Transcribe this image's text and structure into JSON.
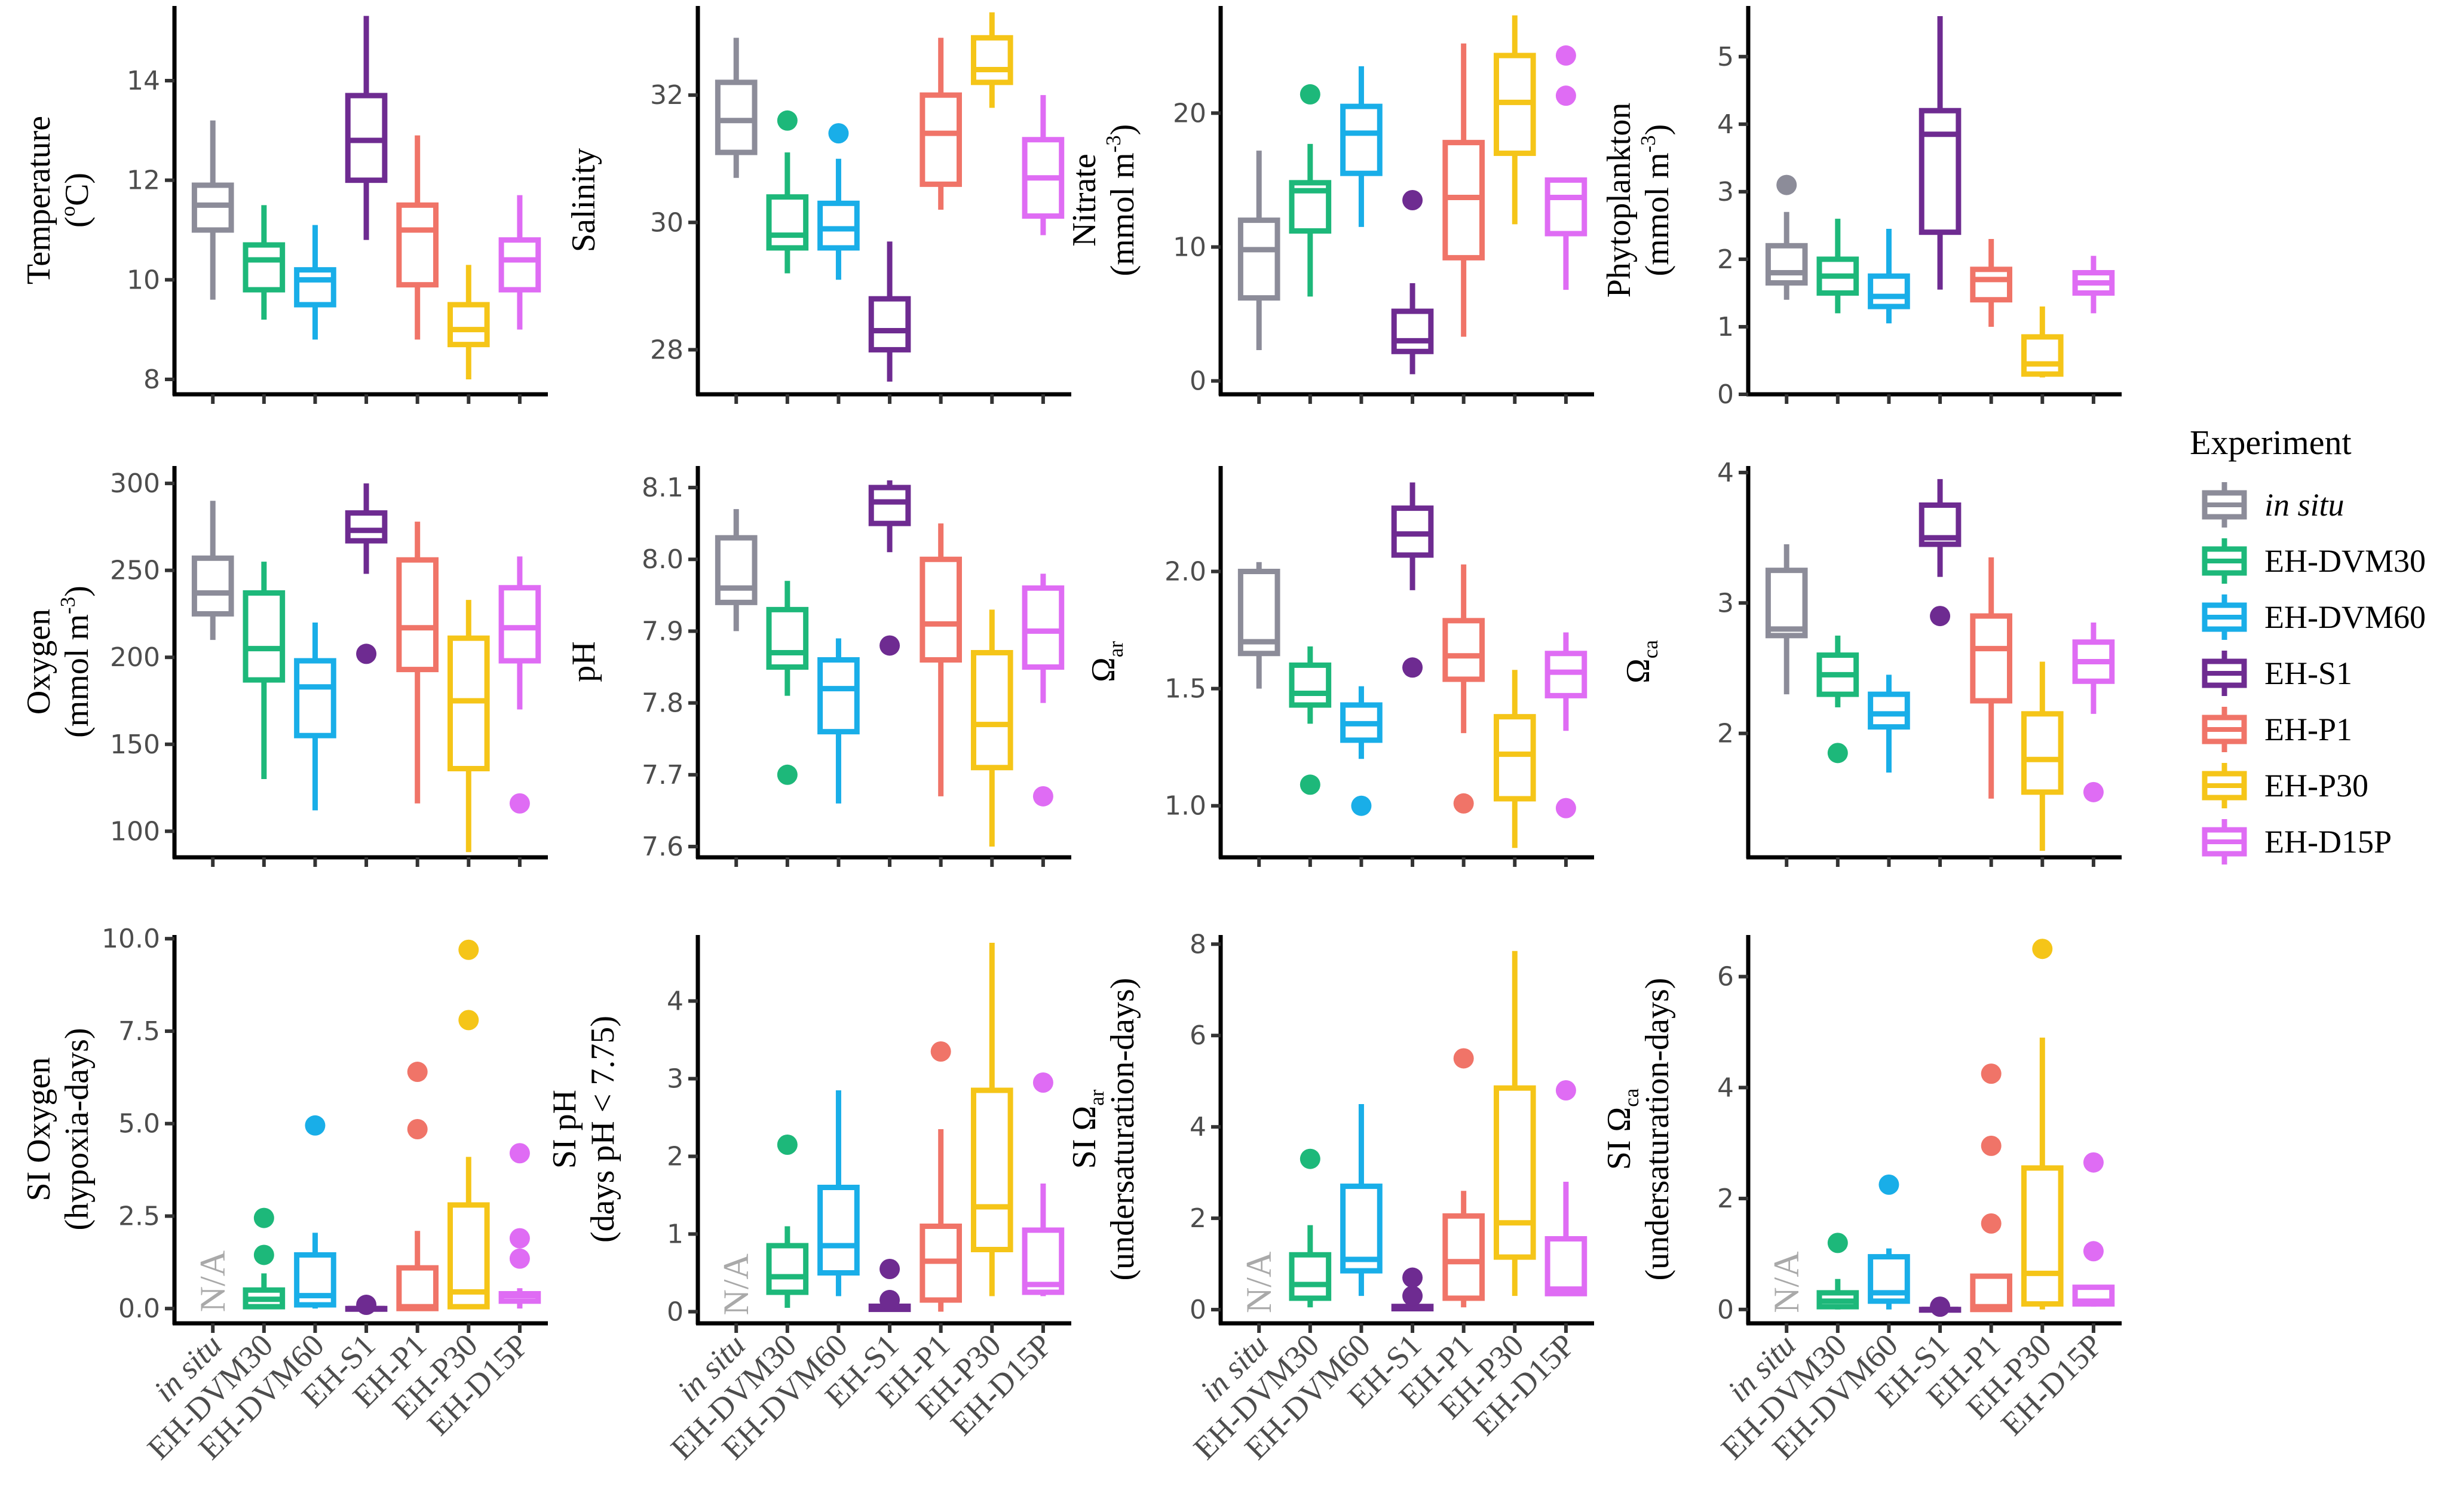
{
  "legend": {
    "title": "Experiment",
    "items": [
      {
        "label": "in situ",
        "color": "#8c8c99",
        "italic": true
      },
      {
        "label": "EH-DVM30",
        "color": "#1db87a",
        "italic": false
      },
      {
        "label": "EH-DVM60",
        "color": "#19aee8",
        "italic": false
      },
      {
        "label": "EH-S1",
        "color": "#6e2b91",
        "italic": false
      },
      {
        "label": "EH-P1",
        "color": "#f07468",
        "italic": false
      },
      {
        "label": "EH-P30",
        "color": "#f5c518",
        "italic": false
      },
      {
        "label": "EH-D15P",
        "color": "#df6cf4",
        "italic": false
      }
    ]
  },
  "x_categories": [
    "in situ",
    "EH-DVM30",
    "EH-DVM60",
    "EH-S1",
    "EH-P1",
    "EH-P30",
    "EH-D15P"
  ],
  "chart_data": [
    {
      "type": "boxplot",
      "ylabel": [
        "Temperature",
        "(oC)"
      ],
      "ylim": [
        7.7,
        15.5
      ],
      "yticks": [
        8,
        10,
        12,
        14
      ],
      "boxes": [
        {
          "min": 9.6,
          "q1": 11.0,
          "median": 11.5,
          "q3": 11.9,
          "max": 13.2,
          "outliers": []
        },
        {
          "min": 9.2,
          "q1": 9.8,
          "median": 10.4,
          "q3": 10.7,
          "max": 11.5,
          "outliers": []
        },
        {
          "min": 8.8,
          "q1": 9.5,
          "median": 10.0,
          "q3": 10.2,
          "max": 11.1,
          "outliers": []
        },
        {
          "min": 10.8,
          "q1": 12.0,
          "median": 12.8,
          "q3": 13.7,
          "max": 15.3,
          "outliers": []
        },
        {
          "min": 8.8,
          "q1": 9.9,
          "median": 11.0,
          "q3": 11.5,
          "max": 12.9,
          "outliers": []
        },
        {
          "min": 8.0,
          "q1": 8.7,
          "median": 9.0,
          "q3": 9.5,
          "max": 10.3,
          "outliers": []
        },
        {
          "min": 9.0,
          "q1": 9.8,
          "median": 10.4,
          "q3": 10.8,
          "max": 11.7,
          "outliers": []
        }
      ]
    },
    {
      "type": "boxplot",
      "ylabel": [
        "Salinity"
      ],
      "ylim": [
        27.3,
        33.4
      ],
      "yticks": [
        28,
        30,
        32
      ],
      "boxes": [
        {
          "min": 30.7,
          "q1": 31.1,
          "median": 31.6,
          "q3": 32.2,
          "max": 32.9,
          "outliers": []
        },
        {
          "min": 29.2,
          "q1": 29.6,
          "median": 29.8,
          "q3": 30.4,
          "max": 31.1,
          "outliers": [
            31.6
          ]
        },
        {
          "min": 29.1,
          "q1": 29.6,
          "median": 29.9,
          "q3": 30.3,
          "max": 31.0,
          "outliers": [
            31.4
          ]
        },
        {
          "min": 27.5,
          "q1": 28.0,
          "median": 28.3,
          "q3": 28.8,
          "max": 29.7,
          "outliers": []
        },
        {
          "min": 30.2,
          "q1": 30.6,
          "median": 31.4,
          "q3": 32.0,
          "max": 32.9,
          "outliers": []
        },
        {
          "min": 31.8,
          "q1": 32.2,
          "median": 32.4,
          "q3": 32.9,
          "max": 33.3,
          "outliers": []
        },
        {
          "min": 29.8,
          "q1": 30.1,
          "median": 30.7,
          "q3": 31.3,
          "max": 32.0,
          "outliers": []
        }
      ]
    },
    {
      "type": "boxplot",
      "ylabel": [
        "Nitrate",
        "(mmol m-3)"
      ],
      "ylim": [
        -1,
        28
      ],
      "yticks": [
        0,
        10,
        20
      ],
      "boxes": [
        {
          "min": 2.3,
          "q1": 6.2,
          "median": 9.8,
          "q3": 12.0,
          "max": 17.2,
          "outliers": []
        },
        {
          "min": 6.3,
          "q1": 11.2,
          "median": 14.2,
          "q3": 14.8,
          "max": 17.7,
          "outliers": [
            21.4
          ]
        },
        {
          "min": 11.5,
          "q1": 15.5,
          "median": 18.5,
          "q3": 20.5,
          "max": 23.5,
          "outliers": []
        },
        {
          "min": 0.5,
          "q1": 2.2,
          "median": 3.0,
          "q3": 5.2,
          "max": 7.3,
          "outliers": [
            13.5
          ]
        },
        {
          "min": 3.3,
          "q1": 9.2,
          "median": 13.7,
          "q3": 17.8,
          "max": 25.2,
          "outliers": []
        },
        {
          "min": 11.7,
          "q1": 17.0,
          "median": 20.8,
          "q3": 24.3,
          "max": 27.3,
          "outliers": []
        },
        {
          "min": 6.8,
          "q1": 11.0,
          "median": 13.7,
          "q3": 15.0,
          "max": 15.0,
          "outliers": [
            21.3,
            24.3
          ]
        }
      ]
    },
    {
      "type": "boxplot",
      "ylabel": [
        "Phytoplankton",
        "(mmol m-3)"
      ],
      "ylim": [
        0,
        5.75
      ],
      "yticks": [
        0,
        1,
        2,
        3,
        4,
        5
      ],
      "boxes": [
        {
          "min": 1.4,
          "q1": 1.65,
          "median": 1.8,
          "q3": 2.2,
          "max": 2.7,
          "outliers": [
            3.1
          ]
        },
        {
          "min": 1.2,
          "q1": 1.5,
          "median": 1.75,
          "q3": 2.0,
          "max": 2.6,
          "outliers": []
        },
        {
          "min": 1.05,
          "q1": 1.3,
          "median": 1.45,
          "q3": 1.75,
          "max": 2.45,
          "outliers": []
        },
        {
          "min": 1.55,
          "q1": 2.4,
          "median": 3.85,
          "q3": 4.2,
          "max": 5.6,
          "outliers": []
        },
        {
          "min": 1.0,
          "q1": 1.4,
          "median": 1.7,
          "q3": 1.85,
          "max": 2.3,
          "outliers": []
        },
        {
          "min": 0.25,
          "q1": 0.3,
          "median": 0.45,
          "q3": 0.85,
          "max": 1.3,
          "outliers": []
        },
        {
          "min": 1.2,
          "q1": 1.5,
          "median": 1.65,
          "q3": 1.8,
          "max": 2.05,
          "outliers": []
        }
      ]
    },
    {
      "type": "boxplot",
      "ylabel": [
        "Oxygen",
        "(mmol m-3)"
      ],
      "ylim": [
        85,
        310
      ],
      "yticks": [
        100,
        150,
        200,
        250,
        300
      ],
      "boxes": [
        {
          "min": 210,
          "q1": 225,
          "median": 237,
          "q3": 257,
          "max": 290,
          "outliers": []
        },
        {
          "min": 130,
          "q1": 187,
          "median": 205,
          "q3": 237,
          "max": 255,
          "outliers": []
        },
        {
          "min": 112,
          "q1": 155,
          "median": 183,
          "q3": 198,
          "max": 220,
          "outliers": []
        },
        {
          "min": 248,
          "q1": 267,
          "median": 273,
          "q3": 283,
          "max": 300,
          "outliers": [
            202
          ]
        },
        {
          "min": 116,
          "q1": 193,
          "median": 217,
          "q3": 256,
          "max": 278,
          "outliers": []
        },
        {
          "min": 88,
          "q1": 136,
          "median": 175,
          "q3": 211,
          "max": 233,
          "outliers": []
        },
        {
          "min": 170,
          "q1": 198,
          "median": 217,
          "q3": 240,
          "max": 258,
          "outliers": [
            116
          ]
        }
      ]
    },
    {
      "type": "boxplot",
      "ylabel": [
        "pH"
      ],
      "ylim": [
        7.585,
        8.13
      ],
      "yticks": [
        7.6,
        7.7,
        7.8,
        7.9,
        8.0,
        8.1
      ],
      "boxes": [
        {
          "min": 7.9,
          "q1": 7.94,
          "median": 7.96,
          "q3": 8.03,
          "max": 8.07,
          "outliers": []
        },
        {
          "min": 7.81,
          "q1": 7.85,
          "median": 7.87,
          "q3": 7.93,
          "max": 7.97,
          "outliers": [
            7.7
          ]
        },
        {
          "min": 7.66,
          "q1": 7.76,
          "median": 7.82,
          "q3": 7.86,
          "max": 7.89,
          "outliers": []
        },
        {
          "min": 8.01,
          "q1": 8.05,
          "median": 8.08,
          "q3": 8.1,
          "max": 8.11,
          "outliers": [
            7.88
          ]
        },
        {
          "min": 7.67,
          "q1": 7.86,
          "median": 7.91,
          "q3": 8.0,
          "max": 8.05,
          "outliers": []
        },
        {
          "min": 7.6,
          "q1": 7.71,
          "median": 7.77,
          "q3": 7.87,
          "max": 7.93,
          "outliers": []
        },
        {
          "min": 7.8,
          "q1": 7.85,
          "median": 7.9,
          "q3": 7.96,
          "max": 7.98,
          "outliers": [
            7.67
          ]
        }
      ]
    },
    {
      "type": "boxplot",
      "ylabel": [
        "Ωar"
      ],
      "ylim": [
        0.78,
        2.45
      ],
      "yticks": [
        1.0,
        1.5,
        2.0
      ],
      "boxes": [
        {
          "min": 1.5,
          "q1": 1.65,
          "median": 1.7,
          "q3": 2.0,
          "max": 2.04,
          "outliers": []
        },
        {
          "min": 1.35,
          "q1": 1.43,
          "median": 1.48,
          "q3": 1.6,
          "max": 1.68,
          "outliers": [
            1.09
          ]
        },
        {
          "min": 1.2,
          "q1": 1.28,
          "median": 1.35,
          "q3": 1.43,
          "max": 1.51,
          "outliers": [
            1.0
          ]
        },
        {
          "min": 1.92,
          "q1": 2.07,
          "median": 2.16,
          "q3": 2.27,
          "max": 2.38,
          "outliers": [
            1.59
          ]
        },
        {
          "min": 1.31,
          "q1": 1.54,
          "median": 1.64,
          "q3": 1.79,
          "max": 2.03,
          "outliers": [
            1.01
          ]
        },
        {
          "min": 0.82,
          "q1": 1.03,
          "median": 1.22,
          "q3": 1.38,
          "max": 1.58,
          "outliers": []
        },
        {
          "min": 1.32,
          "q1": 1.47,
          "median": 1.57,
          "q3": 1.65,
          "max": 1.74,
          "outliers": [
            0.99
          ]
        }
      ]
    },
    {
      "type": "boxplot",
      "ylabel": [
        "Ωca"
      ],
      "ylim": [
        1.05,
        4.05
      ],
      "yticks": [
        2,
        3,
        4
      ],
      "boxes": [
        {
          "min": 2.3,
          "q1": 2.75,
          "median": 2.8,
          "q3": 3.25,
          "max": 3.45,
          "outliers": []
        },
        {
          "min": 2.2,
          "q1": 2.3,
          "median": 2.45,
          "q3": 2.6,
          "max": 2.75,
          "outliers": [
            1.85
          ]
        },
        {
          "min": 1.7,
          "q1": 2.05,
          "median": 2.15,
          "q3": 2.3,
          "max": 2.45,
          "outliers": []
        },
        {
          "min": 3.2,
          "q1": 3.45,
          "median": 3.5,
          "q3": 3.75,
          "max": 3.95,
          "outliers": [
            2.9
          ]
        },
        {
          "min": 1.5,
          "q1": 2.25,
          "median": 2.65,
          "q3": 2.9,
          "max": 3.35,
          "outliers": []
        },
        {
          "min": 1.1,
          "q1": 1.55,
          "median": 1.8,
          "q3": 2.15,
          "max": 2.55,
          "outliers": []
        },
        {
          "min": 2.15,
          "q1": 2.4,
          "median": 2.55,
          "q3": 2.7,
          "max": 2.85,
          "outliers": [
            1.55
          ]
        }
      ]
    },
    {
      "type": "boxplot",
      "ylabel": [
        "SI Oxygen",
        "(hypoxia-days)"
      ],
      "ylim": [
        -0.4,
        10.1
      ],
      "yticks": [
        0.0,
        2.5,
        5.0,
        7.5,
        10.0
      ],
      "na_label": "N/A",
      "boxes": [
        null,
        {
          "min": 0.0,
          "q1": 0.05,
          "median": 0.25,
          "q3": 0.5,
          "max": 0.95,
          "outliers": [
            1.45,
            2.45
          ]
        },
        {
          "min": 0.0,
          "q1": 0.1,
          "median": 0.35,
          "q3": 1.45,
          "max": 2.05,
          "outliers": [
            4.95
          ]
        },
        {
          "min": 0.0,
          "q1": 0.0,
          "median": 0.0,
          "q3": 0.0,
          "max": 0.0,
          "outliers": [
            0.1
          ]
        },
        {
          "min": 0.0,
          "q1": 0.0,
          "median": 0.05,
          "q3": 1.1,
          "max": 2.1,
          "outliers": [
            4.85,
            6.4
          ]
        },
        {
          "min": 0.0,
          "q1": 0.05,
          "median": 0.45,
          "q3": 2.8,
          "max": 4.1,
          "outliers": [
            7.8,
            9.7
          ]
        },
        {
          "min": 0.0,
          "q1": 0.2,
          "median": 0.35,
          "q3": 0.4,
          "max": 0.55,
          "outliers": [
            1.35,
            1.9,
            4.2
          ]
        }
      ]
    },
    {
      "type": "boxplot",
      "ylabel": [
        "SI pH",
        "(days pH < 7.75)"
      ],
      "ylim": [
        -0.15,
        4.85
      ],
      "yticks": [
        0,
        1,
        2,
        3,
        4
      ],
      "na_label": "N/A",
      "boxes": [
        null,
        {
          "min": 0.05,
          "q1": 0.25,
          "median": 0.45,
          "q3": 0.85,
          "max": 1.1,
          "outliers": [
            2.15
          ]
        },
        {
          "min": 0.2,
          "q1": 0.5,
          "median": 0.85,
          "q3": 1.6,
          "max": 2.85,
          "outliers": []
        },
        {
          "min": 0.0,
          "q1": 0.03,
          "median": 0.05,
          "q3": 0.07,
          "max": 0.1,
          "outliers": [
            0.15,
            0.55
          ]
        },
        {
          "min": 0.0,
          "q1": 0.15,
          "median": 0.65,
          "q3": 1.1,
          "max": 2.35,
          "outliers": [
            3.35
          ]
        },
        {
          "min": 0.2,
          "q1": 0.8,
          "median": 1.35,
          "q3": 2.85,
          "max": 4.75,
          "outliers": []
        },
        {
          "min": 0.2,
          "q1": 0.25,
          "median": 0.35,
          "q3": 1.05,
          "max": 1.65,
          "outliers": [
            2.95
          ]
        }
      ]
    },
    {
      "type": "boxplot",
      "ylabel": [
        "SI Ωar",
        "(undersaturation-days)"
      ],
      "ylim": [
        -0.3,
        8.2
      ],
      "yticks": [
        0,
        2,
        4,
        6,
        8
      ],
      "na_label": "N/A",
      "boxes": [
        null,
        {
          "min": 0.05,
          "q1": 0.25,
          "median": 0.55,
          "q3": 1.2,
          "max": 1.85,
          "outliers": [
            3.3
          ]
        },
        {
          "min": 0.3,
          "q1": 0.85,
          "median": 1.1,
          "q3": 2.7,
          "max": 4.5,
          "outliers": []
        },
        {
          "min": 0.0,
          "q1": 0.02,
          "median": 0.05,
          "q3": 0.07,
          "max": 0.1,
          "outliers": [
            0.3,
            0.7
          ]
        },
        {
          "min": 0.05,
          "q1": 0.25,
          "median": 1.05,
          "q3": 2.05,
          "max": 2.6,
          "outliers": [
            5.5
          ]
        },
        {
          "min": 0.3,
          "q1": 1.15,
          "median": 1.9,
          "q3": 4.85,
          "max": 7.85,
          "outliers": []
        },
        {
          "min": 0.3,
          "q1": 0.35,
          "median": 0.45,
          "q3": 1.55,
          "max": 2.8,
          "outliers": [
            4.8
          ]
        }
      ]
    },
    {
      "type": "boxplot",
      "ylabel": [
        "SI Ωca",
        "(undersaturation-days)"
      ],
      "ylim": [
        -0.25,
        6.75
      ],
      "yticks": [
        0,
        2,
        4,
        6
      ],
      "na_label": "N/A",
      "boxes": [
        null,
        {
          "min": 0.0,
          "q1": 0.05,
          "median": 0.15,
          "q3": 0.3,
          "max": 0.55,
          "outliers": [
            1.2
          ]
        },
        {
          "min": 0.0,
          "q1": 0.15,
          "median": 0.3,
          "q3": 0.95,
          "max": 1.1,
          "outliers": [
            2.25
          ]
        },
        {
          "min": 0.0,
          "q1": 0.0,
          "median": 0.0,
          "q3": 0.0,
          "max": 0.0,
          "outliers": [
            0.05
          ]
        },
        {
          "min": 0.0,
          "q1": 0.0,
          "median": 0.05,
          "q3": 0.6,
          "max": 0.6,
          "outliers": [
            1.55,
            2.95,
            4.25
          ]
        },
        {
          "min": 0.0,
          "q1": 0.1,
          "median": 0.65,
          "q3": 2.55,
          "max": 4.9,
          "outliers": [
            6.5
          ]
        },
        {
          "min": 0.05,
          "q1": 0.1,
          "median": 0.15,
          "q3": 0.4,
          "max": 0.4,
          "outliers": [
            1.05,
            2.65
          ]
        }
      ]
    }
  ]
}
